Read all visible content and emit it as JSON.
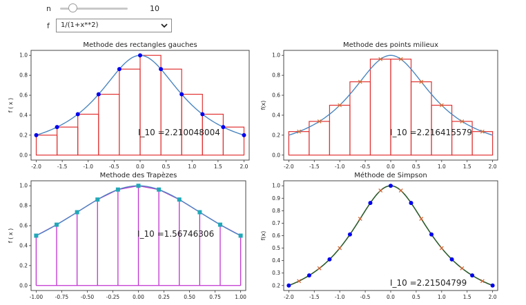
{
  "controls": {
    "slider_label": "n",
    "slider_value": "10",
    "slider_min": 1,
    "slider_max": 50,
    "select_label": "f",
    "select_value": "1/(1+x**2)"
  },
  "chart_data": [
    {
      "type": "bar",
      "title": "Methode des rectangles gauches",
      "ylabel": "f ( x )",
      "xlim": [
        -2.1,
        2.1
      ],
      "ylim": [
        -0.05,
        1.05
      ],
      "xticks": [
        "-2.0",
        "-1.5",
        "-1.0",
        "-0.5",
        "0.0",
        "0.5",
        "1.0",
        "1.5",
        "2.0"
      ],
      "yticks": [
        "0.0",
        "0.2",
        "0.4",
        "0.6",
        "0.8",
        "1.0"
      ],
      "annotation": "I_10 =2.210048004",
      "curve": "1/(1+x**2)",
      "x": [
        -2.0,
        -1.6,
        -1.2,
        -0.8,
        -0.4,
        0.0,
        0.4,
        0.8,
        1.2,
        1.6,
        2.0
      ],
      "y": [
        0.2,
        0.281,
        0.41,
        0.61,
        0.862,
        1.0,
        0.862,
        0.61,
        0.41,
        0.281,
        0.2
      ],
      "bars": [
        {
          "x0": -2.0,
          "x1": -1.6,
          "h": 0.2
        },
        {
          "x0": -1.6,
          "x1": -1.2,
          "h": 0.281
        },
        {
          "x0": -1.2,
          "x1": -0.8,
          "h": 0.41
        },
        {
          "x0": -0.8,
          "x1": -0.4,
          "h": 0.61
        },
        {
          "x0": -0.4,
          "x1": 0.0,
          "h": 0.862
        },
        {
          "x0": 0.0,
          "x1": 0.4,
          "h": 1.0
        },
        {
          "x0": 0.4,
          "x1": 0.8,
          "h": 0.862
        },
        {
          "x0": 0.8,
          "x1": 1.2,
          "h": 0.61
        },
        {
          "x0": 1.2,
          "x1": 1.6,
          "h": 0.41
        },
        {
          "x0": 1.6,
          "x1": 2.0,
          "h": 0.281
        }
      ],
      "colors": {
        "curve": "#4a86c0",
        "bars": "#e03030",
        "points": "#0000ee"
      }
    },
    {
      "type": "bar",
      "title": "Methode des points milieux",
      "ylabel": "f(x)",
      "xlim": [
        -2.1,
        2.1
      ],
      "ylim": [
        -0.05,
        1.05
      ],
      "xticks": [
        "-2.0",
        "-1.5",
        "-1.0",
        "-0.5",
        "0.0",
        "0.5",
        "1.0",
        "1.5",
        "2.0"
      ],
      "yticks": [
        "0.0",
        "0.2",
        "0.4",
        "0.6",
        "0.8",
        "1.0"
      ],
      "annotation": "I_10 =2.216415579",
      "curve": "1/(1+x**2)",
      "midpoints_x": [
        -1.8,
        -1.4,
        -1.0,
        -0.6,
        -0.2,
        0.2,
        0.6,
        1.0,
        1.4,
        1.8
      ],
      "midpoints_y": [
        0.236,
        0.338,
        0.5,
        0.735,
        0.962,
        0.962,
        0.735,
        0.5,
        0.338,
        0.236
      ],
      "bars": [
        {
          "x0": -2.0,
          "x1": -1.6,
          "h": 0.236
        },
        {
          "x0": -1.6,
          "x1": -1.2,
          "h": 0.338
        },
        {
          "x0": -1.2,
          "x1": -0.8,
          "h": 0.5
        },
        {
          "x0": -0.8,
          "x1": -0.4,
          "h": 0.735
        },
        {
          "x0": -0.4,
          "x1": 0.0,
          "h": 0.962
        },
        {
          "x0": 0.0,
          "x1": 0.4,
          "h": 0.962
        },
        {
          "x0": 0.4,
          "x1": 0.8,
          "h": 0.735
        },
        {
          "x0": 0.8,
          "x1": 1.2,
          "h": 0.5
        },
        {
          "x0": 1.2,
          "x1": 1.6,
          "h": 0.338
        },
        {
          "x0": 1.6,
          "x1": 2.0,
          "h": 0.236
        }
      ],
      "colors": {
        "curve": "#4a86c0",
        "bars": "#e03030",
        "points": "#d07030"
      }
    },
    {
      "type": "line",
      "title": "Methode des Trapèzes",
      "ylabel": "f ( x )",
      "xlim": [
        -1.05,
        1.05
      ],
      "ylim": [
        -0.05,
        1.05
      ],
      "xticks": [
        "-1.00",
        "-0.75",
        "-0.50",
        "-0.25",
        "0.00",
        "0.25",
        "0.50",
        "0.75",
        "1.00"
      ],
      "yticks": [
        "0.0",
        "0.2",
        "0.4",
        "0.6",
        "0.8",
        "1.0"
      ],
      "annotation": "I_10 =1.56746306",
      "curve": "1/(1+x**2)",
      "x": [
        -1.0,
        -0.8,
        -0.6,
        -0.4,
        -0.2,
        0.0,
        0.2,
        0.4,
        0.6,
        0.8,
        1.0
      ],
      "y": [
        0.5,
        0.61,
        0.735,
        0.862,
        0.962,
        1.0,
        0.962,
        0.862,
        0.735,
        0.61,
        0.5
      ],
      "colors": {
        "curve": "#4a86c0",
        "trapezoids": "#c030d0",
        "points": "#20a8b8"
      }
    },
    {
      "type": "line",
      "title": "Méthode de Simpson",
      "ylabel": "f(x)",
      "xlim": [
        -2.1,
        2.1
      ],
      "ylim": [
        0.16,
        1.04
      ],
      "xticks": [
        "-2.0",
        "-1.5",
        "-1.0",
        "-0.5",
        "0.0",
        "0.5",
        "1.0",
        "1.5",
        "2.0"
      ],
      "yticks": [
        "0.2",
        "0.3",
        "0.4",
        "0.5",
        "0.6",
        "0.7",
        "0.8",
        "0.9",
        "1.0"
      ],
      "annotation": "I_10 =2.21504799",
      "curve": "1/(1+x**2)",
      "nodes_x": [
        -2.0,
        -1.6,
        -1.2,
        -0.8,
        -0.4,
        0.0,
        0.4,
        0.8,
        1.2,
        1.6,
        2.0
      ],
      "nodes_y": [
        0.2,
        0.281,
        0.41,
        0.61,
        0.862,
        1.0,
        0.862,
        0.61,
        0.41,
        0.281,
        0.2
      ],
      "mid_x": [
        -1.8,
        -1.4,
        -1.0,
        -0.6,
        -0.2,
        0.2,
        0.6,
        1.0,
        1.4,
        1.8
      ],
      "mid_y": [
        0.236,
        0.338,
        0.5,
        0.735,
        0.962,
        0.962,
        0.735,
        0.5,
        0.338,
        0.236
      ],
      "colors": {
        "curve": "#2a5a2a",
        "points": "#0000ee",
        "midpoints": "#d06030"
      }
    }
  ]
}
